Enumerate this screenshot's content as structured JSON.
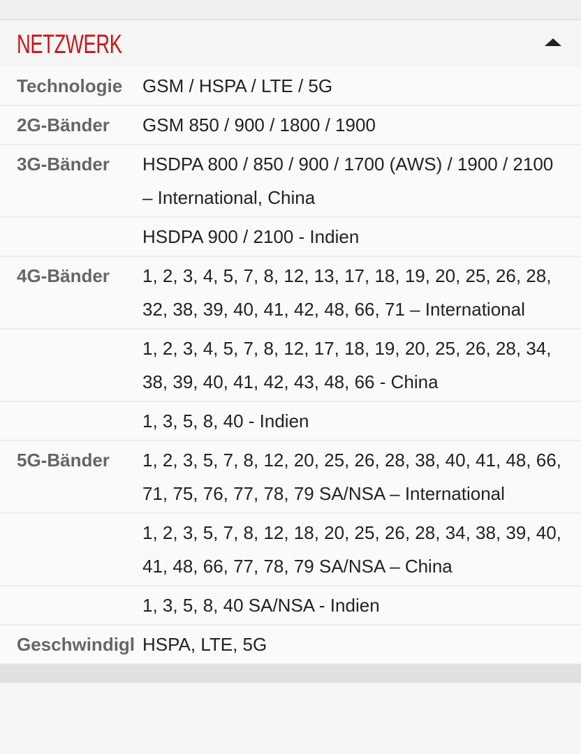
{
  "section": {
    "title": "NETZWERK",
    "toggle_icon": "triangle-up-icon",
    "accent_color": "#c8141a"
  },
  "rows": [
    {
      "label": "Technologie",
      "value": "GSM / HSPA / LTE / 5G"
    },
    {
      "label": "2G-Bänder",
      "value": "GSM 850 / 900 / 1800 / 1900"
    },
    {
      "label": "3G-Bänder",
      "value": "HSDPA 800 / 850 / 900 / 1700 (AWS) / 1900 / 2100 – International, China"
    },
    {
      "label": "",
      "value": "HSDPA 900 / 2100 - Indien"
    },
    {
      "label": "4G-Bänder",
      "value": "1, 2, 3, 4, 5, 7, 8, 12, 13, 17, 18, 19, 20, 25, 26, 28, 32, 38, 39, 40, 41, 42, 48, 66, 71 – International"
    },
    {
      "label": "",
      "value": "1, 2, 3, 4, 5, 7, 8, 12, 17, 18, 19, 20, 25, 26, 28, 34, 38, 39, 40, 41, 42, 43, 48, 66 - China"
    },
    {
      "label": "",
      "value": "1, 3, 5, 8, 40 - Indien"
    },
    {
      "label": "5G-Bänder",
      "value": "1, 2, 3, 5, 7, 8, 12, 20, 25, 26, 28, 38, 40, 41, 48, 66, 71, 75, 76, 77, 78, 79 SA/NSA – International"
    },
    {
      "label": "",
      "value": "1, 2, 3, 5, 7, 8, 12, 18, 20, 25, 26, 28, 34, 38, 39, 40, 41, 48, 66, 77, 78, 79 SA/NSA – China"
    },
    {
      "label": "",
      "value": "1, 3, 5, 8, 40 SA/NSA - Indien"
    },
    {
      "label": "Geschwindigl",
      "value": "HSPA, LTE, 5G"
    }
  ]
}
